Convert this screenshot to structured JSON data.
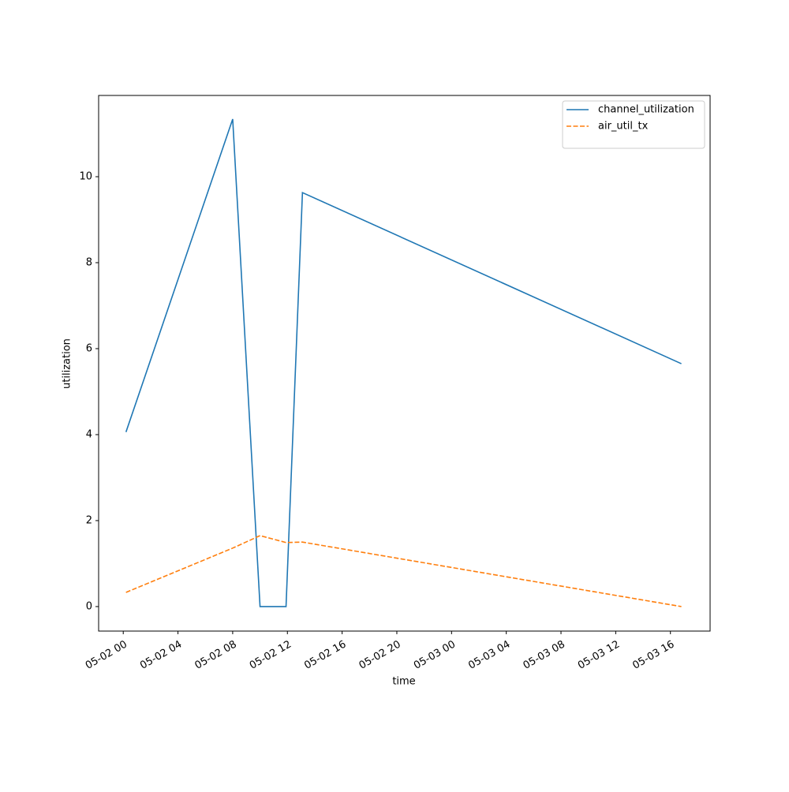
{
  "chart_data": {
    "type": "line",
    "xlabel": "time",
    "ylabel": "utilization",
    "x": [
      0.2,
      8,
      10,
      11.9,
      13.1,
      40.8
    ],
    "series": [
      {
        "name": "channel_utilization",
        "color": "#1f77b4",
        "linestyle": "solid",
        "values": [
          4.06,
          11.34,
          0,
          0,
          9.63,
          5.65
        ]
      },
      {
        "name": "air_util_tx",
        "color": "#ff7f0e",
        "linestyle": "dashed",
        "values": [
          0.33,
          1.36,
          1.65,
          1.49,
          1.5,
          0
        ]
      }
    ],
    "xlim": [
      -1.8,
      42.9
    ],
    "xticks": [
      {
        "value": 0,
        "label": "05-02 00"
      },
      {
        "value": 4,
        "label": "05-02 04"
      },
      {
        "value": 8,
        "label": "05-02 08"
      },
      {
        "value": 12,
        "label": "05-02 12"
      },
      {
        "value": 16,
        "label": "05-02 16"
      },
      {
        "value": 20,
        "label": "05-02 20"
      },
      {
        "value": 24,
        "label": "05-03 00"
      },
      {
        "value": 28,
        "label": "05-03 04"
      },
      {
        "value": 32,
        "label": "05-03 08"
      },
      {
        "value": 36,
        "label": "05-03 12"
      },
      {
        "value": 40,
        "label": "05-03 16"
      }
    ],
    "ylim": [
      -0.57,
      11.89
    ],
    "yticks": [
      0,
      2,
      4,
      6,
      8,
      10
    ],
    "grid": false,
    "legend": "upper right"
  }
}
